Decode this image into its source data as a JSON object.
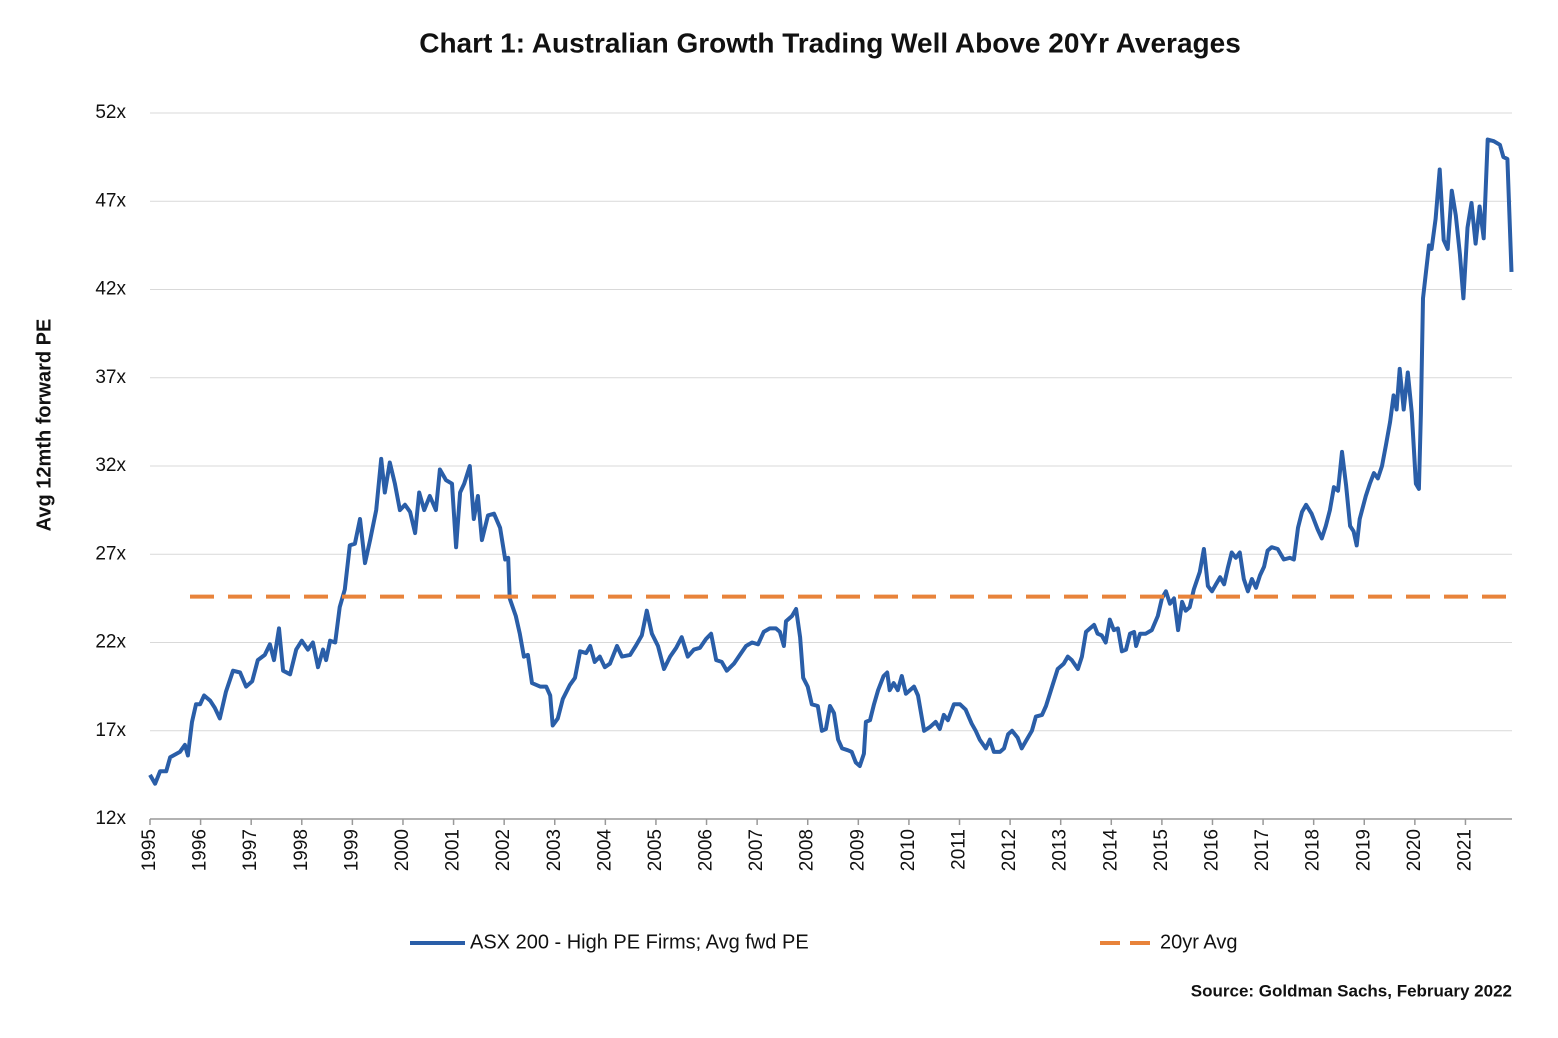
{
  "chart_data": {
    "type": "line",
    "title": "Chart 1: Australian Growth Trading Well Above 20Yr Averages",
    "y_label": "Avg 12mth forward PE",
    "source": "Source: Goldman Sachs, February 2022",
    "xlim": [
      1995,
      2021.92
    ],
    "xticks": [
      1995,
      1996,
      1997,
      1998,
      1999,
      2000,
      2001,
      2002,
      2003,
      2004,
      2005,
      2006,
      2007,
      2008,
      2009,
      2010,
      2011,
      2012,
      2013,
      2014,
      2015,
      2016,
      2017,
      2018,
      2019,
      2020,
      2021
    ],
    "ylim": [
      12,
      52
    ],
    "yticks": [
      {
        "value": 12,
        "label": "12x"
      },
      {
        "value": 17,
        "label": "17x"
      },
      {
        "value": 22,
        "label": "22x"
      },
      {
        "value": 27,
        "label": "27x"
      },
      {
        "value": 32,
        "label": "32x"
      },
      {
        "value": 37,
        "label": "37x"
      },
      {
        "value": 42,
        "label": "42x"
      },
      {
        "value": 47,
        "label": "47x"
      },
      {
        "value": 52,
        "label": "52x"
      }
    ],
    "grid": true,
    "x": [
      1995.0,
      1995.1,
      1995.2,
      1995.32,
      1995.4,
      1995.59,
      1995.69,
      1995.75,
      1995.83,
      1995.91,
      1995.99,
      1996.07,
      1996.19,
      1996.28,
      1996.38,
      1996.5,
      1996.64,
      1996.78,
      1996.9,
      1997.02,
      1997.13,
      1997.27,
      1997.37,
      1997.45,
      1997.55,
      1997.63,
      1997.77,
      1997.89,
      1998.0,
      1998.12,
      1998.22,
      1998.32,
      1998.42,
      1998.48,
      1998.56,
      1998.66,
      1998.75,
      1998.85,
      1998.95,
      1999.05,
      1999.15,
      1999.25,
      1999.35,
      1999.47,
      1999.57,
      1999.64,
      1999.74,
      1999.84,
      1999.94,
      2000.04,
      2000.14,
      2000.24,
      2000.32,
      2000.42,
      2000.53,
      2000.65,
      2000.73,
      2000.85,
      2000.97,
      2001.05,
      2001.13,
      2001.21,
      2001.32,
      2001.4,
      2001.48,
      2001.56,
      2001.68,
      2001.8,
      2001.92,
      2002.02,
      2002.08,
      2002.11,
      2002.23,
      2002.31,
      2002.39,
      2002.47,
      2002.55,
      2002.71,
      2002.83,
      2002.91,
      2002.96,
      2003.06,
      2003.16,
      2003.3,
      2003.4,
      2003.5,
      2003.62,
      2003.7,
      2003.79,
      2003.89,
      2003.99,
      2004.09,
      2004.23,
      2004.33,
      2004.49,
      2004.6,
      2004.72,
      2004.82,
      2004.92,
      2005.04,
      2005.16,
      2005.28,
      2005.4,
      2005.51,
      2005.63,
      2005.75,
      2005.87,
      2005.99,
      2006.09,
      2006.19,
      2006.3,
      2006.4,
      2006.54,
      2006.66,
      2006.78,
      2006.9,
      2007.02,
      2007.13,
      2007.25,
      2007.37,
      2007.45,
      2007.53,
      2007.57,
      2007.69,
      2007.77,
      2007.85,
      2007.91,
      2008.0,
      2008.08,
      2008.2,
      2008.28,
      2008.36,
      2008.44,
      2008.52,
      2008.6,
      2008.68,
      2008.79,
      2008.87,
      2008.95,
      2009.03,
      2009.11,
      2009.15,
      2009.23,
      2009.31,
      2009.39,
      2009.5,
      2009.57,
      2009.62,
      2009.7,
      2009.78,
      2009.86,
      2009.94,
      2010.02,
      2010.1,
      2010.18,
      2010.3,
      2010.41,
      2010.53,
      2010.61,
      2010.69,
      2010.77,
      2010.89,
      2011.01,
      2011.12,
      2011.24,
      2011.32,
      2011.4,
      2011.52,
      2011.6,
      2011.68,
      2011.8,
      2011.88,
      2011.96,
      2012.04,
      2012.15,
      2012.23,
      2012.31,
      2012.43,
      2012.51,
      2012.63,
      2012.71,
      2012.83,
      2012.94,
      2013.06,
      2013.14,
      2013.22,
      2013.34,
      2013.42,
      2013.5,
      2013.58,
      2013.66,
      2013.73,
      2013.81,
      2013.89,
      2013.97,
      2014.05,
      2014.13,
      2014.21,
      2014.29,
      2014.37,
      2014.45,
      2014.49,
      2014.57,
      2014.68,
      2014.8,
      2014.92,
      2015.0,
      2015.08,
      2015.16,
      2015.24,
      2015.32,
      2015.4,
      2015.47,
      2015.55,
      2015.63,
      2015.75,
      2015.83,
      2015.91,
      2015.99,
      2016.07,
      2016.15,
      2016.23,
      2016.3,
      2016.38,
      2016.46,
      2016.54,
      2016.62,
      2016.7,
      2016.78,
      2016.86,
      2016.94,
      2017.02,
      2017.09,
      2017.17,
      2017.29,
      2017.41,
      2017.53,
      2017.61,
      2017.69,
      2017.77,
      2017.85,
      2017.96,
      2018.08,
      2018.16,
      2018.24,
      2018.32,
      2018.4,
      2018.48,
      2018.56,
      2018.64,
      2018.72,
      2018.79,
      2018.85,
      2018.91,
      2019.03,
      2019.11,
      2019.19,
      2019.27,
      2019.35,
      2019.43,
      2019.51,
      2019.58,
      2019.64,
      2019.7,
      2019.78,
      2019.86,
      2019.94,
      2020.02,
      2020.08,
      2020.12,
      2020.16,
      2020.22,
      2020.28,
      2020.33,
      2020.41,
      2020.49,
      2020.57,
      2020.65,
      2020.73,
      2020.81,
      2020.89,
      2020.96,
      2021.04,
      2021.12,
      2021.2,
      2021.28,
      2021.36,
      2021.44,
      2021.56,
      2021.68,
      2021.75,
      2021.83,
      2021.91
    ],
    "series": [
      {
        "name": "ASX 200 - High PE Firms; Avg fwd PE",
        "color": "#2a5ea8",
        "values": [
          14.5,
          14.0,
          14.7,
          14.7,
          15.5,
          15.8,
          16.2,
          15.6,
          17.5,
          18.5,
          18.5,
          19.0,
          18.7,
          18.3,
          17.7,
          19.2,
          20.4,
          20.3,
          19.5,
          19.8,
          21.0,
          21.3,
          21.9,
          21.0,
          22.8,
          20.4,
          20.2,
          21.6,
          22.1,
          21.6,
          22.0,
          20.6,
          21.6,
          21.0,
          22.1,
          22.0,
          24.0,
          25.0,
          27.5,
          27.6,
          29.0,
          26.5,
          27.8,
          29.5,
          32.4,
          30.5,
          32.2,
          31.0,
          29.5,
          29.8,
          29.4,
          28.2,
          30.5,
          29.5,
          30.3,
          29.5,
          31.8,
          31.2,
          31.0,
          27.4,
          30.5,
          31.0,
          32.0,
          29.0,
          30.3,
          27.8,
          29.2,
          29.3,
          28.5,
          26.7,
          26.8,
          24.5,
          23.5,
          22.5,
          21.2,
          21.3,
          19.7,
          19.5,
          19.5,
          19.0,
          17.3,
          17.7,
          18.8,
          19.6,
          20.0,
          21.5,
          21.4,
          21.8,
          20.9,
          21.2,
          20.6,
          20.8,
          21.8,
          21.2,
          21.3,
          21.8,
          22.4,
          23.8,
          22.5,
          21.8,
          20.5,
          21.2,
          21.7,
          22.3,
          21.2,
          21.6,
          21.7,
          22.2,
          22.5,
          21.0,
          20.9,
          20.4,
          20.8,
          21.3,
          21.8,
          22.0,
          21.9,
          22.6,
          22.8,
          22.8,
          22.6,
          21.8,
          23.2,
          23.5,
          23.9,
          22.3,
          20.0,
          19.5,
          18.5,
          18.4,
          17.0,
          17.1,
          18.4,
          18.0,
          16.5,
          16.0,
          15.9,
          15.8,
          15.2,
          15.0,
          15.7,
          17.5,
          17.6,
          18.5,
          19.3,
          20.1,
          20.3,
          19.3,
          19.7,
          19.3,
          20.1,
          19.1,
          19.3,
          19.5,
          19.0,
          17.0,
          17.2,
          17.5,
          17.1,
          17.9,
          17.6,
          18.5,
          18.5,
          18.2,
          17.4,
          17.0,
          16.5,
          16.0,
          16.5,
          15.8,
          15.8,
          16.0,
          16.8,
          17.0,
          16.6,
          16.0,
          16.4,
          17.0,
          17.8,
          17.9,
          18.4,
          19.5,
          20.5,
          20.8,
          21.2,
          21.0,
          20.5,
          21.2,
          22.6,
          22.8,
          23.0,
          22.5,
          22.4,
          22.0,
          23.3,
          22.7,
          22.8,
          21.5,
          21.6,
          22.5,
          22.6,
          21.8,
          22.5,
          22.5,
          22.7,
          23.5,
          24.5,
          24.9,
          24.2,
          24.5,
          22.7,
          24.3,
          23.8,
          24.0,
          25.0,
          26.0,
          27.3,
          25.2,
          24.9,
          25.3,
          25.7,
          25.3,
          26.2,
          27.1,
          26.8,
          27.1,
          25.6,
          24.9,
          25.6,
          25.1,
          25.8,
          26.3,
          27.2,
          27.4,
          27.3,
          26.7,
          26.8,
          26.7,
          28.5,
          29.4,
          29.8,
          29.3,
          28.4,
          27.9,
          28.6,
          29.5,
          30.8,
          30.6,
          32.8,
          30.9,
          28.6,
          28.3,
          27.5,
          29.0,
          30.3,
          31.0,
          31.6,
          31.3,
          32.0,
          33.2,
          34.5,
          36.0,
          35.2,
          37.5,
          35.2,
          37.3,
          35.0,
          31.0,
          30.7,
          35.0,
          41.5,
          43.0,
          44.5,
          44.3,
          46.0,
          48.8,
          44.8,
          44.3,
          47.6,
          46.2,
          44.0,
          41.5,
          45.5,
          46.9,
          44.6,
          46.7,
          44.9,
          50.5,
          50.4,
          50.2,
          49.5,
          49.4,
          43.0
        ]
      },
      {
        "name": "20yr Avg",
        "color": "#e8833a",
        "dashed": true,
        "value": 24.6
      }
    ]
  }
}
